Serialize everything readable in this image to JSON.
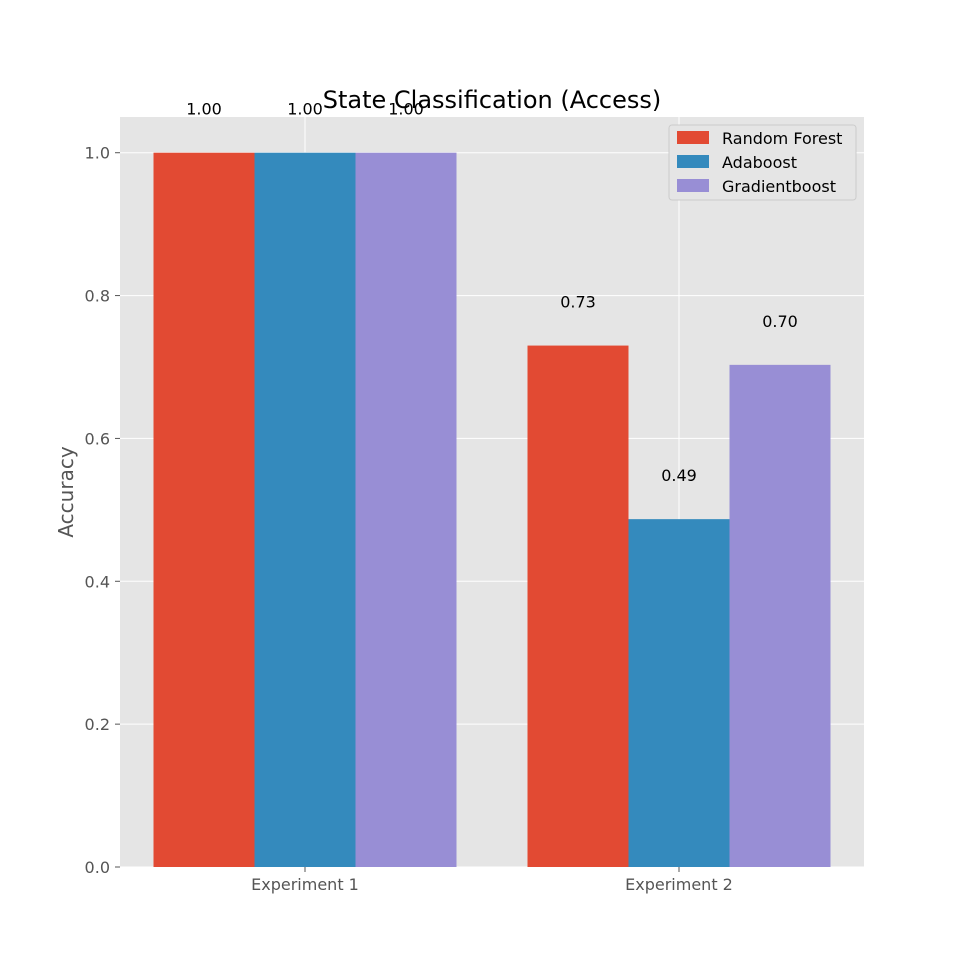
{
  "chart_data": {
    "type": "bar",
    "title": "State Classification (Access)",
    "xlabel": "",
    "ylabel": "Accuracy",
    "categories": [
      "Experiment 1",
      "Experiment 2"
    ],
    "series": [
      {
        "name": "Random Forest",
        "values": [
          1.0,
          0.73
        ],
        "labels": [
          "1.00",
          "0.73"
        ],
        "color": "#E24A33"
      },
      {
        "name": "Adaboost",
        "values": [
          1.0,
          0.487
        ],
        "labels": [
          "1.00",
          "0.49"
        ],
        "color": "#348ABD"
      },
      {
        "name": "Gradientboost",
        "values": [
          1.0,
          0.703
        ],
        "labels": [
          "1.00",
          "0.70"
        ],
        "color": "#988ED5"
      }
    ],
    "ylim": [
      0,
      1.05
    ],
    "yticks": [
      "0.0",
      "0.2",
      "0.4",
      "0.6",
      "0.8",
      "1.0"
    ],
    "grid": true,
    "legend_position": "top-right",
    "background_color": "#E5E5E5",
    "grid_color": "#FFFFFF"
  }
}
